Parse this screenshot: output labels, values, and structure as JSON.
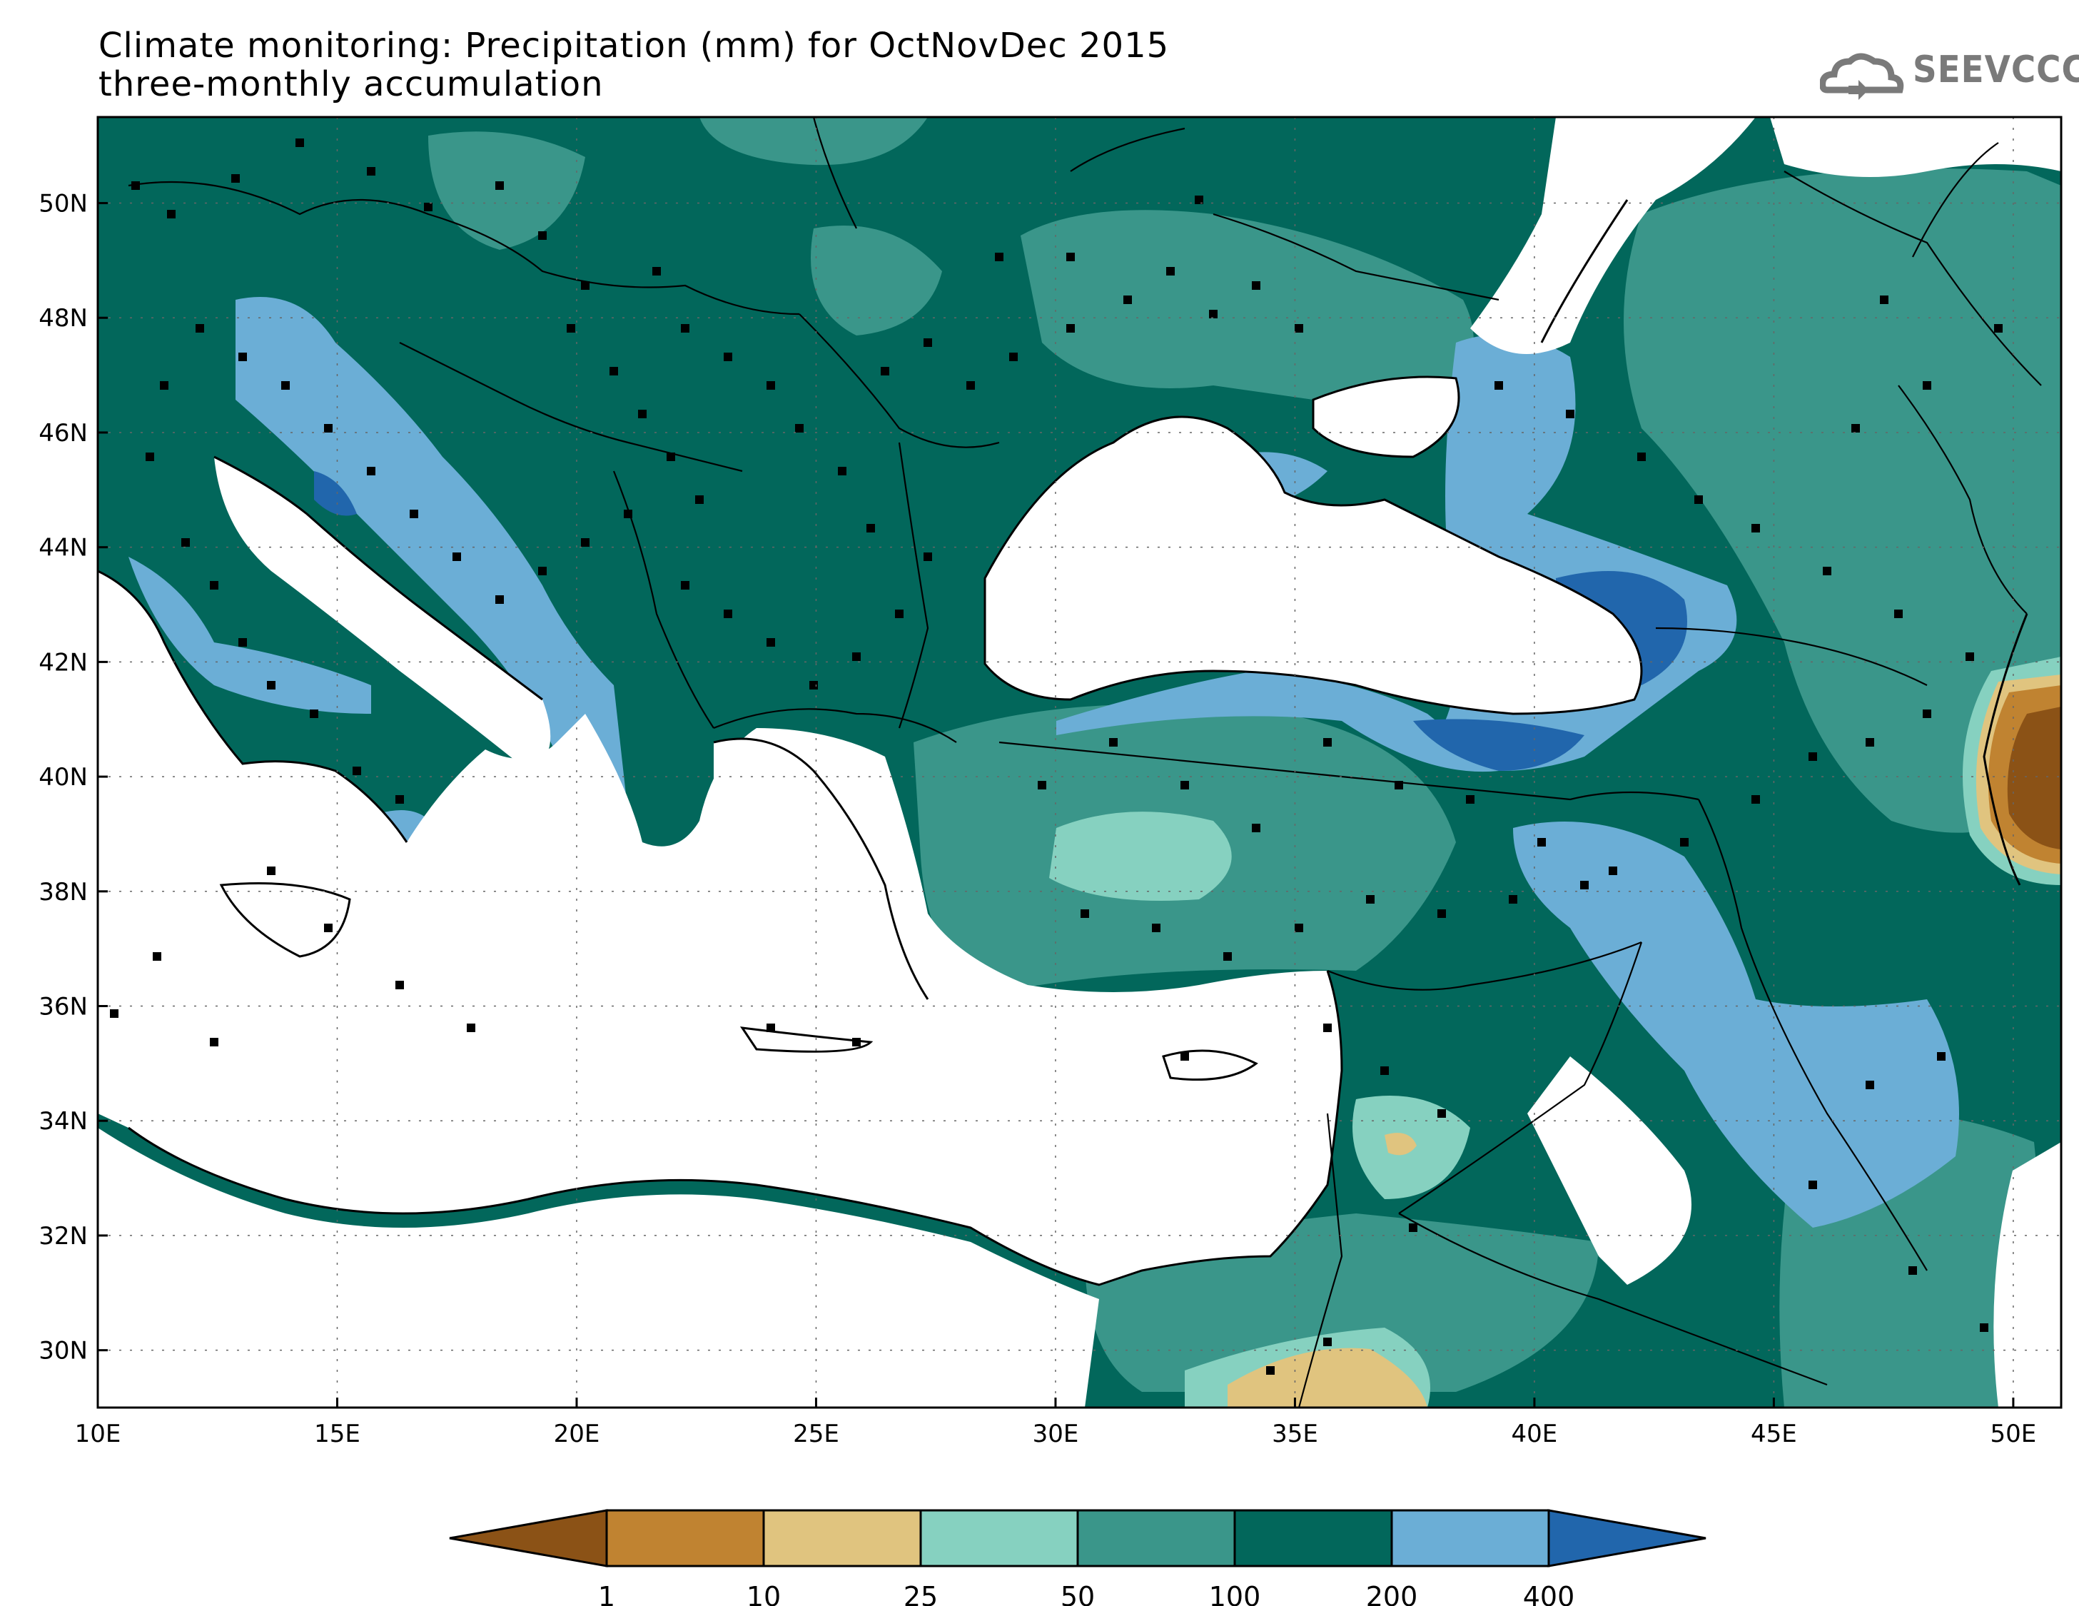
{
  "title": {
    "line1": "Climate monitoring: Precipitation (mm) for OctNovDec 2015",
    "line2": "three-monthly accumulation"
  },
  "logo": {
    "text": "SEEVCCC",
    "icon": "cloud-icon"
  },
  "map": {
    "lon_labels": [
      "10E",
      "15E",
      "20E",
      "25E",
      "30E",
      "35E",
      "40E",
      "45E",
      "50E"
    ],
    "lat_labels": [
      "50N",
      "48N",
      "46N",
      "44N",
      "42N",
      "40N",
      "38N",
      "36N",
      "34N",
      "32N",
      "30N"
    ]
  },
  "colorbar": {
    "ticks": [
      "1",
      "10",
      "25",
      "50",
      "100",
      "200",
      "400"
    ],
    "colors": [
      "#8b5216",
      "#c08331",
      "#e0c47f",
      "#86d1c0",
      "#3a968a",
      "#02675b",
      "#6baed6",
      "#2166ac"
    ]
  }
}
